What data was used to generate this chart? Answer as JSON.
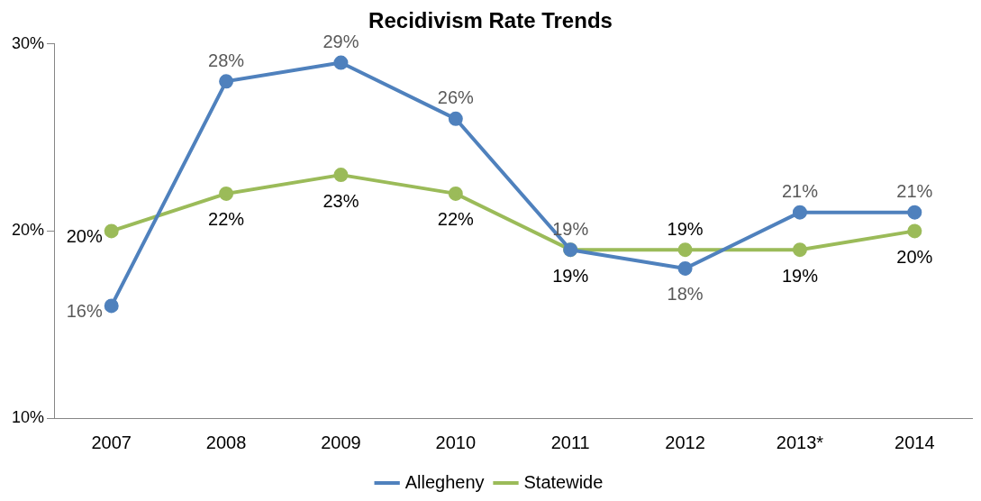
{
  "chart_data": {
    "type": "line",
    "title": "Recidivism Rate Trends",
    "categories": [
      "2007",
      "2008",
      "2009",
      "2010",
      "2011",
      "2012",
      "2013*",
      "2014"
    ],
    "series": [
      {
        "name": "Allegheny",
        "color": "#4f81bd",
        "values": [
          16,
          28,
          29,
          26,
          19,
          18,
          21,
          21
        ],
        "value_labels": [
          "16%",
          "28%",
          "29%",
          "26%",
          "19%",
          "18%",
          "21%",
          "21%"
        ]
      },
      {
        "name": "Statewide",
        "color": "#9bbb59",
        "values": [
          20,
          22,
          23,
          22,
          19,
          19,
          19,
          20
        ],
        "value_labels": [
          "20%",
          "22%",
          "23%",
          "22%",
          "19%",
          "19%",
          "19%",
          "20%"
        ]
      }
    ],
    "ylim": [
      10,
      30
    ],
    "yticks": [
      {
        "value": 10,
        "label": "10%"
      },
      {
        "value": 20,
        "label": "20%"
      },
      {
        "value": 30,
        "label": "30%"
      }
    ],
    "grid": false,
    "legend": "bottom",
    "marker": "circle",
    "line_style": "solid"
  }
}
